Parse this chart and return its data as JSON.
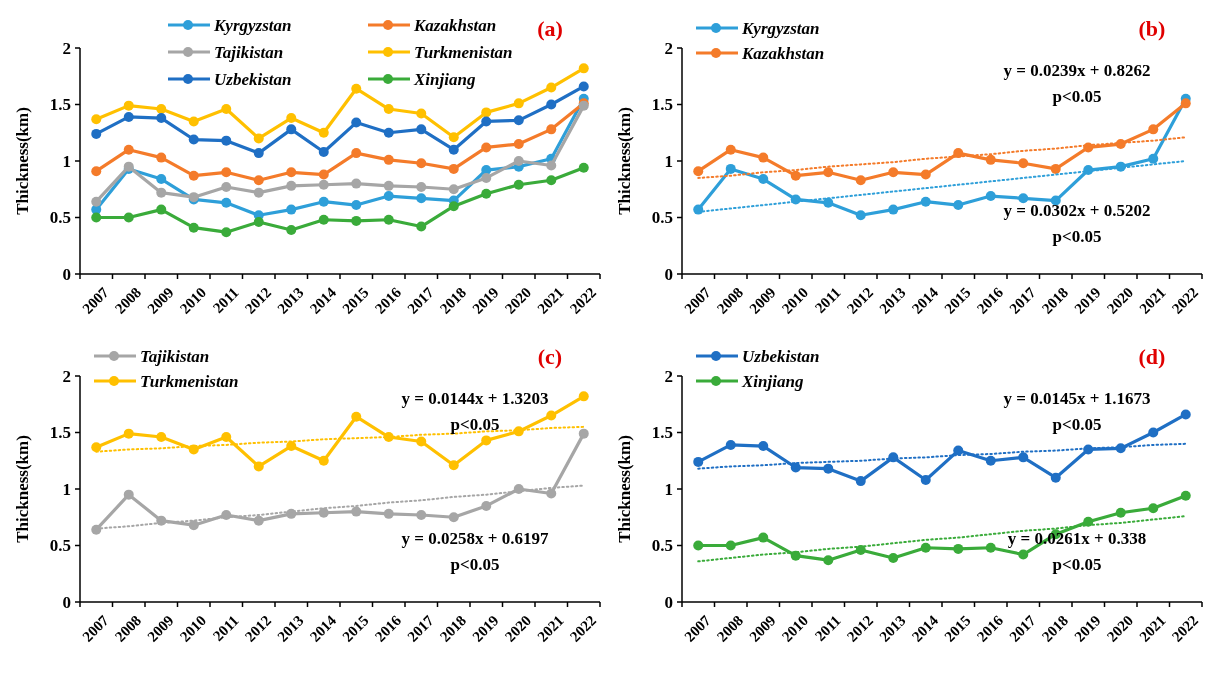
{
  "chart_data": [
    {
      "type": "line",
      "title": "(a)",
      "ylabel": "Thickness(km)",
      "categories": [
        "2007",
        "2008",
        "2009",
        "2010",
        "2011",
        "2012",
        "2013",
        "2014",
        "2015",
        "2016",
        "2017",
        "2018",
        "2019",
        "2020",
        "2021",
        "2022"
      ],
      "ylim": [
        0,
        2
      ],
      "yticks": [
        0,
        0.5,
        1,
        1.5,
        2
      ],
      "legend": "top",
      "marker": "circle",
      "line_style": "solid",
      "grid": false,
      "series": [
        {
          "name": "Kyrgyzstan",
          "color": "#2e9fd9",
          "values": [
            0.57,
            0.93,
            0.84,
            0.66,
            0.63,
            0.52,
            0.57,
            0.64,
            0.61,
            0.69,
            0.67,
            0.65,
            0.92,
            0.95,
            1.02,
            1.55
          ]
        },
        {
          "name": "Kazakhstan",
          "color": "#f47b2a",
          "values": [
            0.91,
            1.1,
            1.03,
            0.87,
            0.9,
            0.83,
            0.9,
            0.88,
            1.07,
            1.01,
            0.98,
            0.93,
            1.12,
            1.15,
            1.28,
            1.51
          ]
        },
        {
          "name": "Tajikistan",
          "color": "#a6a6a6",
          "values": [
            0.64,
            0.95,
            0.72,
            0.68,
            0.77,
            0.72,
            0.78,
            0.79,
            0.8,
            0.78,
            0.77,
            0.75,
            0.85,
            1.0,
            0.96,
            1.49
          ]
        },
        {
          "name": "Turkmenistan",
          "color": "#ffc000",
          "values": [
            1.37,
            1.49,
            1.46,
            1.35,
            1.46,
            1.2,
            1.38,
            1.25,
            1.64,
            1.46,
            1.42,
            1.21,
            1.43,
            1.51,
            1.65,
            1.82
          ]
        },
        {
          "name": "Uzbekistan",
          "color": "#1f6fc4",
          "values": [
            1.24,
            1.39,
            1.38,
            1.19,
            1.18,
            1.07,
            1.28,
            1.08,
            1.34,
            1.25,
            1.28,
            1.1,
            1.35,
            1.36,
            1.5,
            1.66
          ]
        },
        {
          "name": "Xinjiang",
          "color": "#3aab3a",
          "values": [
            0.5,
            0.5,
            0.57,
            0.41,
            0.37,
            0.46,
            0.39,
            0.48,
            0.47,
            0.48,
            0.42,
            0.6,
            0.71,
            0.79,
            0.83,
            0.94
          ]
        }
      ]
    },
    {
      "type": "line",
      "title": "(b)",
      "ylabel": "Thickness(km)",
      "categories": [
        "2007",
        "2008",
        "2009",
        "2010",
        "2011",
        "2012",
        "2013",
        "2014",
        "2015",
        "2016",
        "2017",
        "2018",
        "2019",
        "2020",
        "2021",
        "2022"
      ],
      "ylim": [
        0,
        2
      ],
      "yticks": [
        0,
        0.5,
        1,
        1.5,
        2
      ],
      "legend": "top left",
      "marker": "circle",
      "line_style": "solid",
      "grid": false,
      "series": [
        {
          "name": "Kyrgyzstan",
          "color": "#2e9fd9",
          "values": [
            0.57,
            0.93,
            0.84,
            0.66,
            0.63,
            0.52,
            0.57,
            0.64,
            0.61,
            0.69,
            0.67,
            0.65,
            0.92,
            0.95,
            1.02,
            1.55
          ]
        },
        {
          "name": "Kazakhstan",
          "color": "#f47b2a",
          "values": [
            0.91,
            1.1,
            1.03,
            0.87,
            0.9,
            0.83,
            0.9,
            0.88,
            1.07,
            1.01,
            0.98,
            0.93,
            1.12,
            1.15,
            1.28,
            1.51
          ]
        },
        {
          "color": "#2e9fd9",
          "values": [
            0.55,
            0.58,
            0.61,
            0.64,
            0.67,
            0.7,
            0.73,
            0.76,
            0.79,
            0.82,
            0.85,
            0.88,
            0.91,
            0.94,
            0.97,
            1.0
          ],
          "line_style": "dotted",
          "marker": "none"
        },
        {
          "color": "#f47b2a",
          "values": [
            0.85,
            0.87,
            0.9,
            0.92,
            0.95,
            0.97,
            0.99,
            1.02,
            1.04,
            1.06,
            1.09,
            1.11,
            1.14,
            1.16,
            1.18,
            1.21
          ],
          "line_style": "dotted",
          "marker": "none"
        }
      ],
      "annotations": [
        "y = 0.0239x + 0.8262",
        "p<0.05",
        "y = 0.0302x + 0.5202",
        "p<0.05"
      ]
    },
    {
      "type": "line",
      "title": "(c)",
      "ylabel": "Thickness(km)",
      "categories": [
        "2007",
        "2008",
        "2009",
        "2010",
        "2011",
        "2012",
        "2013",
        "2014",
        "2015",
        "2016",
        "2017",
        "2018",
        "2019",
        "2020",
        "2021",
        "2022"
      ],
      "ylim": [
        0,
        2
      ],
      "yticks": [
        0,
        0.5,
        1,
        1.5,
        2
      ],
      "legend": "top left",
      "marker": "circle",
      "line_style": "solid",
      "grid": false,
      "series": [
        {
          "name": "Tajikistan",
          "color": "#a6a6a6",
          "values": [
            0.64,
            0.95,
            0.72,
            0.68,
            0.77,
            0.72,
            0.78,
            0.79,
            0.8,
            0.78,
            0.77,
            0.75,
            0.85,
            1.0,
            0.96,
            1.49
          ]
        },
        {
          "name": "Turkmenistan",
          "color": "#ffc000",
          "values": [
            1.37,
            1.49,
            1.46,
            1.35,
            1.46,
            1.2,
            1.38,
            1.25,
            1.64,
            1.46,
            1.42,
            1.21,
            1.43,
            1.51,
            1.65,
            1.82
          ]
        },
        {
          "color": "#a6a6a6",
          "values": [
            0.65,
            0.67,
            0.7,
            0.72,
            0.75,
            0.77,
            0.8,
            0.83,
            0.85,
            0.88,
            0.9,
            0.93,
            0.95,
            0.98,
            1.01,
            1.03
          ],
          "line_style": "dotted",
          "marker": "none"
        },
        {
          "color": "#ffc000",
          "values": [
            1.33,
            1.35,
            1.36,
            1.38,
            1.39,
            1.41,
            1.42,
            1.44,
            1.45,
            1.46,
            1.48,
            1.49,
            1.51,
            1.52,
            1.54,
            1.55
          ],
          "line_style": "dotted",
          "marker": "none"
        }
      ],
      "annotations": [
        "y = 0.0144x + 1.3203",
        "p<0.05",
        "y = 0.0258x + 0.6197",
        "p<0.05"
      ]
    },
    {
      "type": "line",
      "title": "(d)",
      "ylabel": "Thickness(km)",
      "categories": [
        "2007",
        "2008",
        "2009",
        "2010",
        "2011",
        "2012",
        "2013",
        "2014",
        "2015",
        "2016",
        "2017",
        "2018",
        "2019",
        "2020",
        "2021",
        "2022"
      ],
      "ylim": [
        0,
        2
      ],
      "yticks": [
        0,
        0.5,
        1,
        1.5,
        2
      ],
      "legend": "top left",
      "marker": "circle",
      "line_style": "solid",
      "grid": false,
      "series": [
        {
          "name": "Uzbekistan",
          "color": "#1f6fc4",
          "values": [
            1.24,
            1.39,
            1.38,
            1.19,
            1.18,
            1.07,
            1.28,
            1.08,
            1.34,
            1.25,
            1.28,
            1.1,
            1.35,
            1.36,
            1.5,
            1.66
          ]
        },
        {
          "name": "Xinjiang",
          "color": "#3aab3a",
          "values": [
            0.5,
            0.5,
            0.57,
            0.41,
            0.37,
            0.46,
            0.39,
            0.48,
            0.47,
            0.48,
            0.42,
            0.6,
            0.71,
            0.79,
            0.83,
            0.94
          ]
        },
        {
          "color": "#1f6fc4",
          "values": [
            1.18,
            1.2,
            1.21,
            1.23,
            1.24,
            1.25,
            1.27,
            1.28,
            1.3,
            1.31,
            1.33,
            1.34,
            1.36,
            1.37,
            1.39,
            1.4
          ],
          "line_style": "dotted",
          "marker": "none"
        },
        {
          "color": "#3aab3a",
          "values": [
            0.36,
            0.39,
            0.42,
            0.44,
            0.47,
            0.49,
            0.52,
            0.55,
            0.57,
            0.6,
            0.63,
            0.65,
            0.68,
            0.7,
            0.73,
            0.76
          ],
          "line_style": "dotted",
          "marker": "none"
        }
      ],
      "annotations": [
        "y = 0.0145x + 1.1673",
        "p<0.05",
        "y = 0.0261x + 0.338",
        "p<0.05"
      ]
    }
  ]
}
